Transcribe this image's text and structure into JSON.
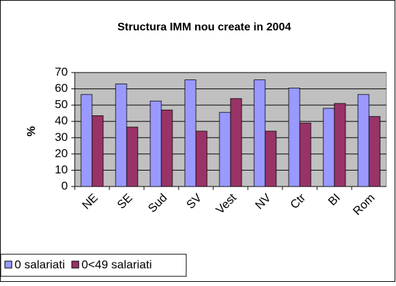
{
  "chart_data": {
    "type": "bar",
    "title": "Structura IMM nou create in 2004",
    "y_label": "%",
    "categories": [
      "NE",
      "SE",
      "Sud",
      "SV",
      "Vest",
      "NV",
      "Ctr",
      "BI",
      "Rom"
    ],
    "series": [
      {
        "name": "0 salariati",
        "color": "#9999ff",
        "values": [
          56.5,
          63,
          52.5,
          65.5,
          45.5,
          65.5,
          60.5,
          48,
          56.5
        ]
      },
      {
        "name": "0<49 salariati",
        "color": "#993366",
        "values": [
          43.5,
          36.5,
          47,
          34,
          54,
          34,
          39,
          51,
          43
        ]
      }
    ],
    "ylim": [
      0,
      70
    ],
    "yticks": [
      0,
      10,
      20,
      30,
      40,
      50,
      60,
      70
    ],
    "grid": true,
    "legend": "bottom-left"
  }
}
